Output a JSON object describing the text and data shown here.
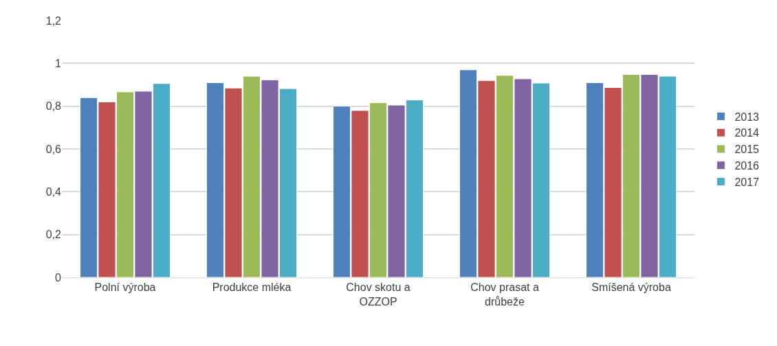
{
  "chart_data": {
    "type": "bar",
    "categories": [
      "Polní výroba",
      "Produkce mléka",
      "Chov skotu a OZZOP",
      "Chov prasat a drůbeže",
      "Smíšená výroba"
    ],
    "series": [
      {
        "name": "2013",
        "color": "#4f81bd",
        "values": [
          0.84,
          0.91,
          0.8,
          0.97,
          0.91
        ]
      },
      {
        "name": "2014",
        "color": "#c0504d",
        "values": [
          0.82,
          0.885,
          0.78,
          0.92,
          0.887
        ]
      },
      {
        "name": "2015",
        "color": "#9bbb59",
        "values": [
          0.867,
          0.94,
          0.816,
          0.944,
          0.948
        ]
      },
      {
        "name": "2016",
        "color": "#8064a2",
        "values": [
          0.87,
          0.923,
          0.805,
          0.928,
          0.948
        ]
      },
      {
        "name": "2017",
        "color": "#4bacc6",
        "values": [
          0.906,
          0.882,
          0.829,
          0.908,
          0.94
        ]
      }
    ],
    "ylim": [
      0,
      1.2
    ],
    "yticks": [
      {
        "value": 0,
        "label": "0"
      },
      {
        "value": 0.2,
        "label": "0,2"
      },
      {
        "value": 0.4,
        "label": "0,4"
      },
      {
        "value": 0.6,
        "label": "0,6"
      },
      {
        "value": 0.8,
        "label": "0,8"
      },
      {
        "value": 1,
        "label": "1"
      },
      {
        "value": 1.2,
        "label": "1,2"
      }
    ],
    "grid": "y",
    "legend": "right"
  }
}
